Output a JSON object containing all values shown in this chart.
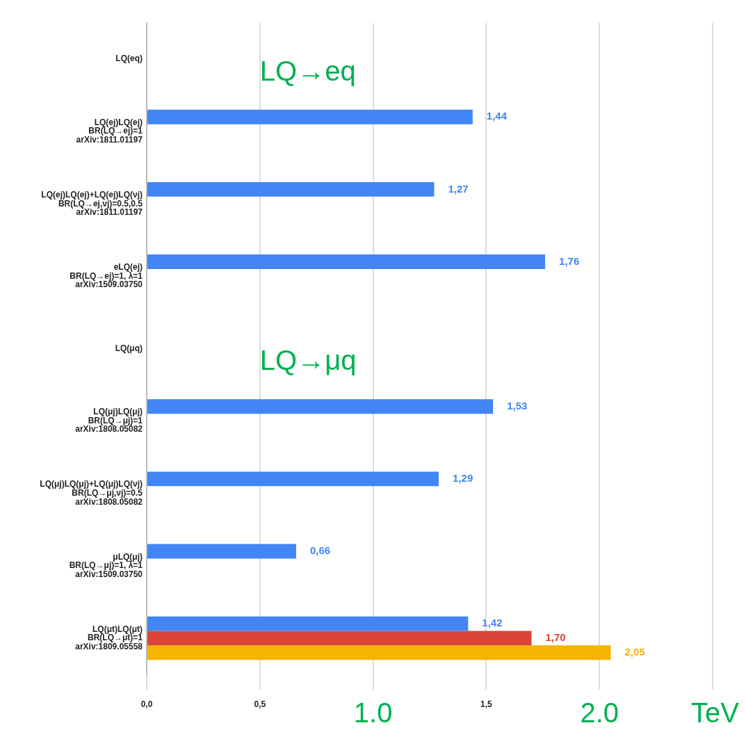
{
  "chart_data": {
    "type": "bar",
    "orientation": "horizontal",
    "xlabel": "TeV",
    "categories": [
      "LQ(eq)",
      "LQ(ej)LQ(ej)\nBR(LQ→ej)=1\narXiv:1811.01197",
      "LQ(ej)LQ(ej)+LQ(ej)LQ(νj)\nBR(LQ→ej,νj)=0.5,0.5\narXiv:1811.01197",
      "eLQ(ej)\nBR(LQ→ej)=1, λ=1\narXiv:1509.03750",
      "LQ(μq)",
      "LQ(μj)LQ(μj)\nBR(LQ→μj)=1\narXiv:1808.05082",
      "LQ(μj)LQ(μj)+LQ(μj)LQ(νj)\nBR(LQ→μj,νj)=0.5\narXiv:1808.05082",
      "μLQ(μj)\nBR(LQ→μj)=1, λ=1\narXiv:1509.03750",
      "LQ(μt)LQ(μt)\nBR(LQ→μt)=1\narXiv:1809.05558"
    ],
    "series": [
      {
        "color": "#4285f4",
        "values": [
          null,
          1.44,
          1.27,
          1.76,
          null,
          1.53,
          1.29,
          0.66,
          1.42
        ],
        "value_labels": [
          null,
          "1,44",
          "1,27",
          "1,76",
          null,
          "1,53",
          "1,29",
          "0,66",
          "1,42"
        ]
      },
      {
        "color": "#db4437",
        "values": [
          null,
          null,
          null,
          null,
          null,
          null,
          null,
          null,
          1.7
        ],
        "value_labels": [
          null,
          null,
          null,
          null,
          null,
          null,
          null,
          null,
          "1,70"
        ]
      },
      {
        "color": "#f4b400",
        "values": [
          null,
          null,
          null,
          null,
          null,
          null,
          null,
          null,
          2.05
        ],
        "value_labels": [
          null,
          null,
          null,
          null,
          null,
          null,
          null,
          null,
          "2,05"
        ]
      }
    ],
    "xlim": [
      0,
      2.5
    ],
    "xticks": [
      {
        "value": 0,
        "label": "0,0"
      },
      {
        "value": 0.5,
        "label": "0,5"
      },
      {
        "value": 1,
        "label": null
      },
      {
        "value": 1.5,
        "label": "1,5"
      },
      {
        "value": 2,
        "label": null
      },
      {
        "value": 2.5,
        "label": null
      }
    ],
    "grid": "x",
    "legend": false,
    "annotations": [
      "LQ→eq",
      "LQ→μq",
      "1.0",
      "2.0"
    ]
  }
}
